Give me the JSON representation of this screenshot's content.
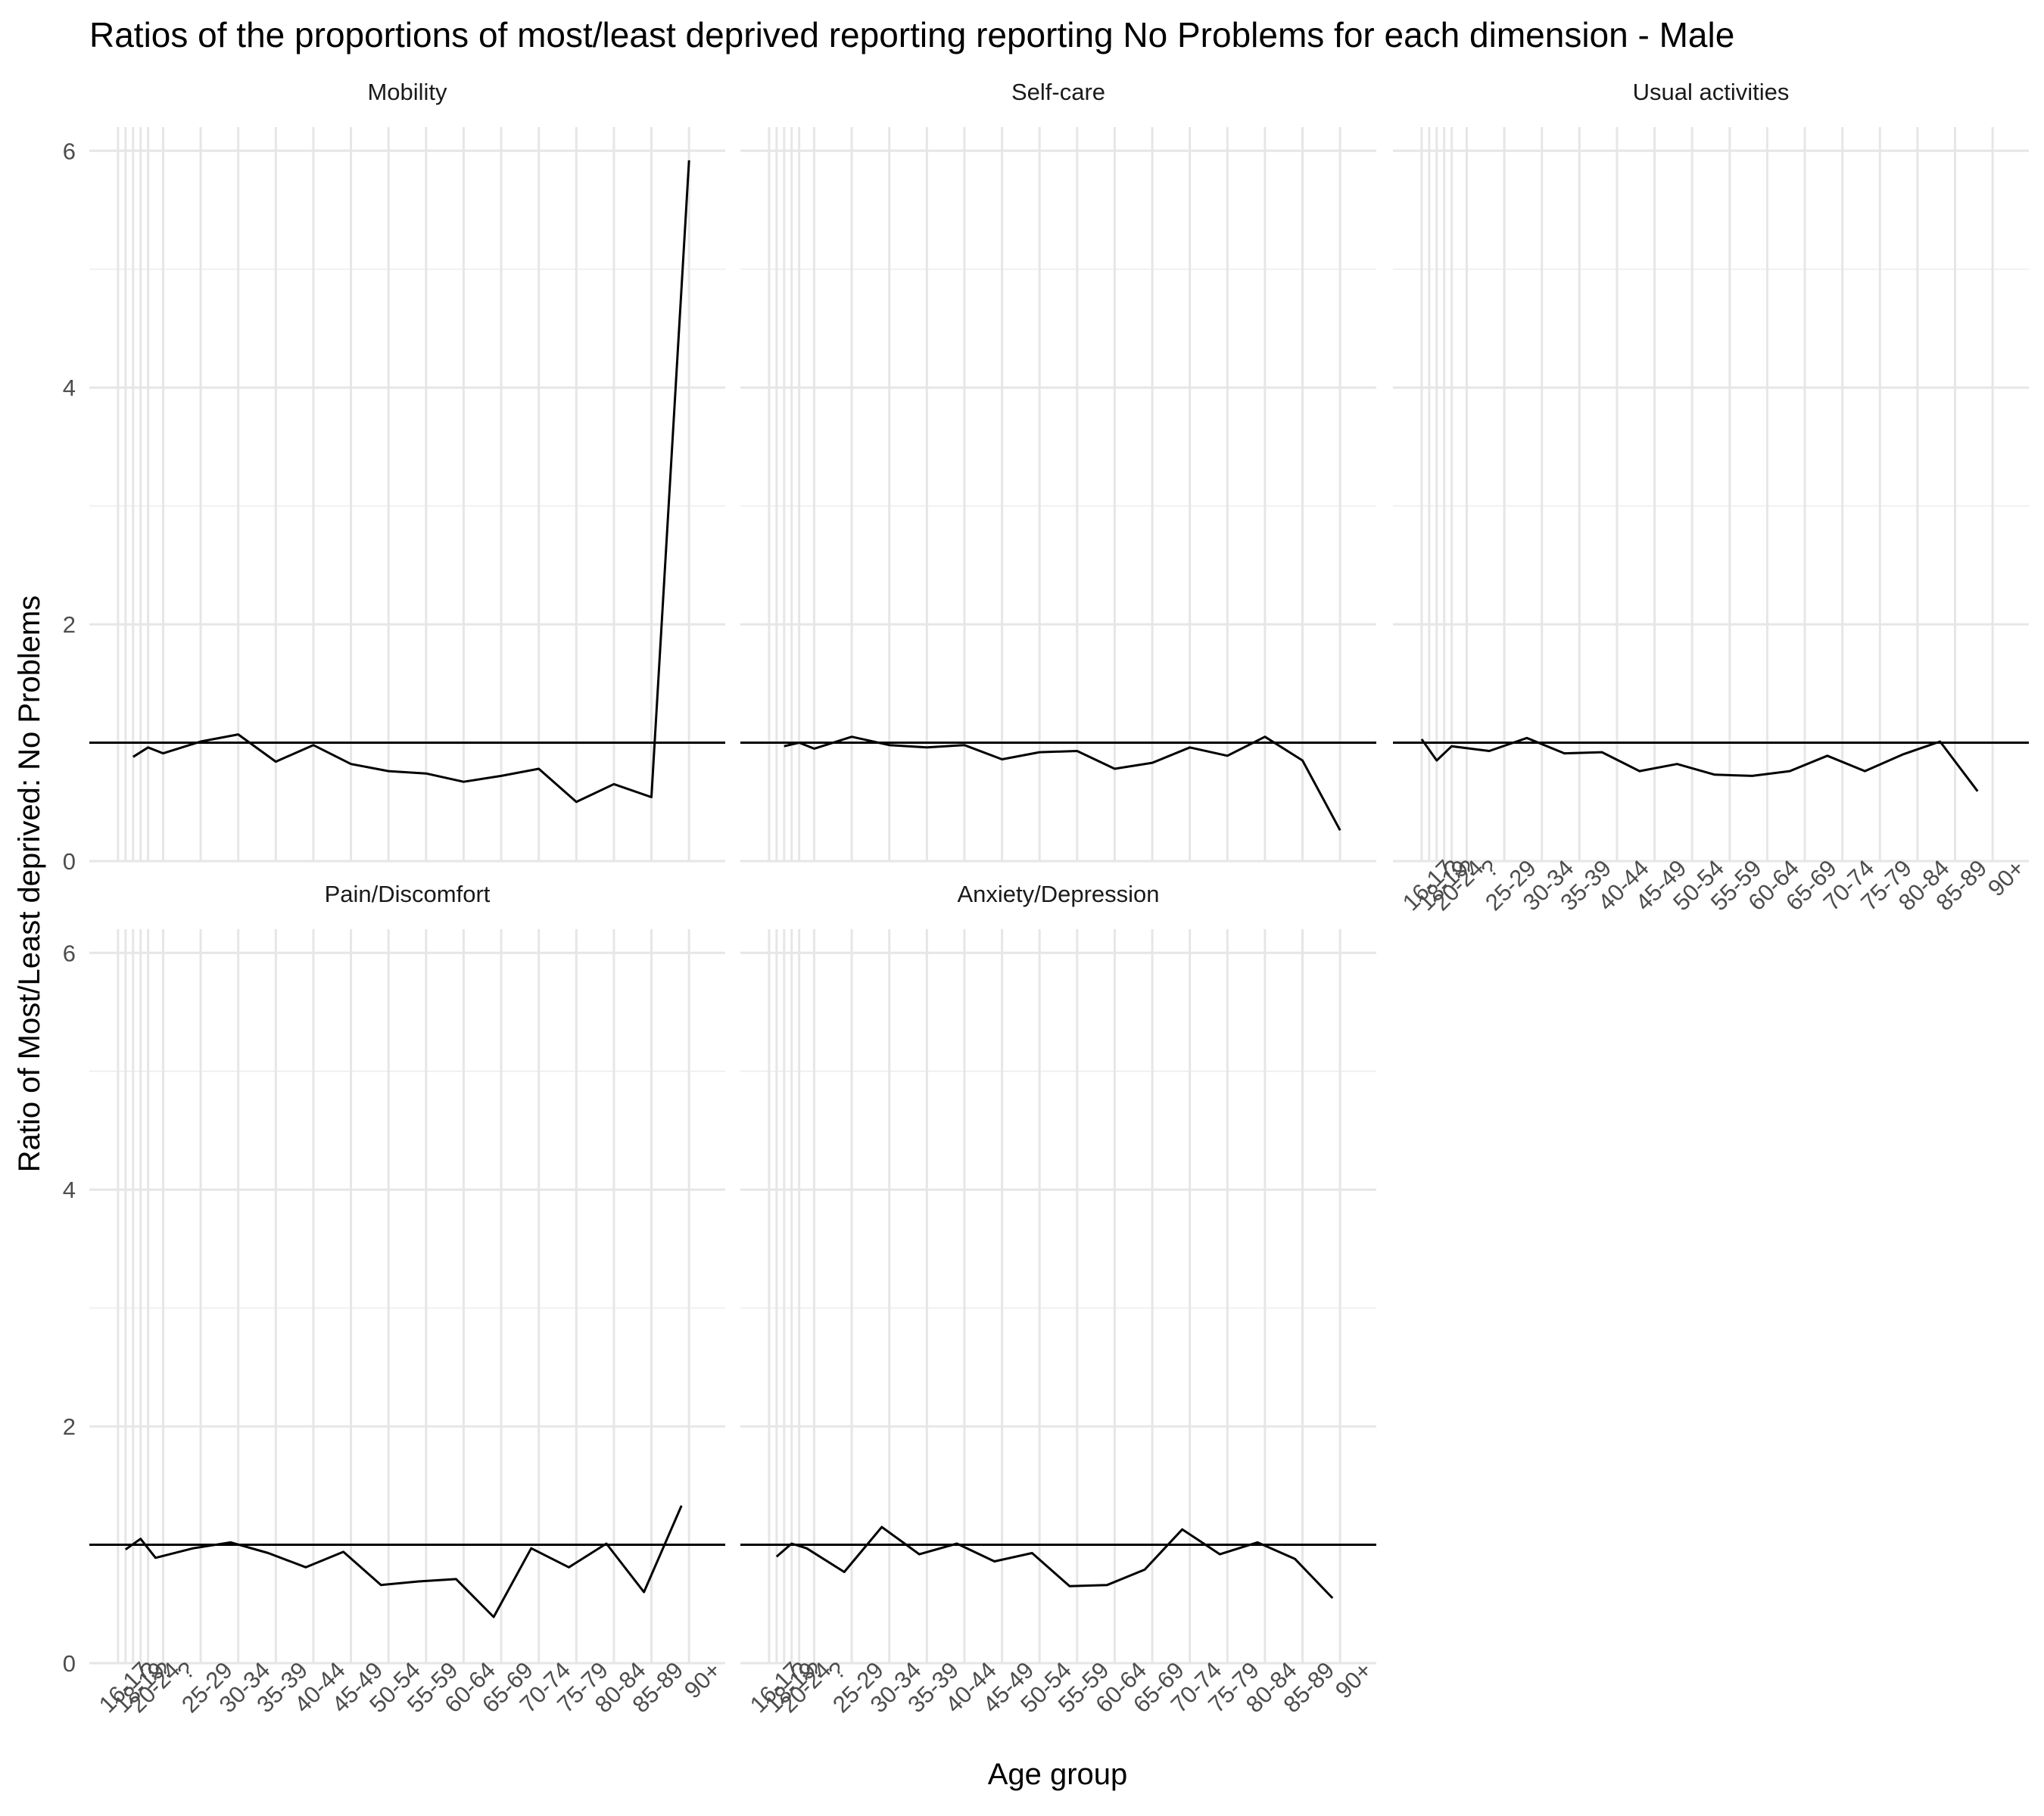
{
  "title": "Ratios of the proportions of most/least deprived reporting reporting No Problems for each dimension - Male",
  "chart_data": {
    "type": "line",
    "title": "Ratios of the proportions of most/least deprived reporting reporting No Problems for each dimension - Male",
    "xlabel": "Age group",
    "ylabel": "Ratio of Most/Least deprived: No Problems",
    "ylim": [
      0,
      6.2
    ],
    "yticks": [
      0,
      2,
      4,
      6
    ],
    "grid": true,
    "reference_line": 1,
    "x_positions": [
      16,
      17,
      18,
      19,
      20,
      22,
      27,
      32,
      37,
      42,
      47,
      52,
      57,
      62,
      67,
      72,
      77,
      82,
      87,
      92
    ],
    "x_tick_labels": [
      "16-17",
      "?",
      "18-19",
      "?",
      "20-24",
      "?",
      "25-29",
      "30-34",
      "35-39",
      "40-44",
      "45-49",
      "50-54",
      "55-59",
      "60-64",
      "65-69",
      "70-74",
      "75-79",
      "80-84",
      "85-89",
      "90+"
    ],
    "panels": [
      {
        "name": "Mobility",
        "x": [
          18,
          20,
          22,
          27,
          32,
          37,
          42,
          47,
          52,
          57,
          62,
          67,
          72,
          77,
          82,
          87,
          92
        ],
        "values": [
          0.88,
          0.96,
          0.91,
          1.01,
          1.07,
          0.84,
          0.98,
          0.82,
          0.76,
          0.74,
          0.67,
          0.72,
          0.78,
          0.5,
          0.65,
          0.54,
          5.92
        ]
      },
      {
        "name": "Self-care",
        "x": [
          18,
          20,
          22,
          27,
          32,
          37,
          42,
          47,
          52,
          57,
          62,
          67,
          72,
          77,
          82,
          87,
          92
        ],
        "values": [
          0.97,
          1.0,
          0.95,
          1.05,
          0.98,
          0.96,
          0.98,
          0.86,
          0.92,
          0.93,
          0.78,
          0.83,
          0.96,
          0.89,
          1.05,
          0.85,
          0.26
        ]
      },
      {
        "name": "Usual activities",
        "x": [
          16,
          18,
          20,
          25,
          30,
          35,
          40,
          45,
          50,
          55,
          60,
          65,
          70,
          75,
          80,
          85,
          90
        ],
        "values": [
          1.03,
          0.85,
          0.97,
          0.93,
          1.04,
          0.91,
          0.92,
          0.76,
          0.82,
          0.73,
          0.72,
          0.76,
          0.89,
          0.76,
          0.9,
          1.01,
          0.59
        ]
      },
      {
        "name": "Pain/Discomfort",
        "x": [
          17,
          19,
          21,
          26,
          31,
          36,
          41,
          46,
          51,
          56,
          61,
          66,
          71,
          76,
          81,
          86,
          91
        ],
        "values": [
          0.96,
          1.05,
          0.89,
          0.97,
          1.02,
          0.93,
          0.81,
          0.94,
          0.66,
          0.69,
          0.71,
          0.39,
          0.97,
          0.81,
          1.01,
          0.6,
          1.33
        ]
      },
      {
        "name": "Anxiety/Depression",
        "x": [
          17,
          19,
          21,
          26,
          31,
          36,
          41,
          46,
          51,
          56,
          61,
          66,
          71,
          76,
          81,
          86,
          91
        ],
        "values": [
          0.9,
          1.01,
          0.97,
          0.77,
          1.15,
          0.92,
          1.01,
          0.86,
          0.93,
          0.65,
          0.66,
          0.79,
          1.13,
          0.92,
          1.02,
          0.88,
          0.55
        ]
      }
    ]
  }
}
